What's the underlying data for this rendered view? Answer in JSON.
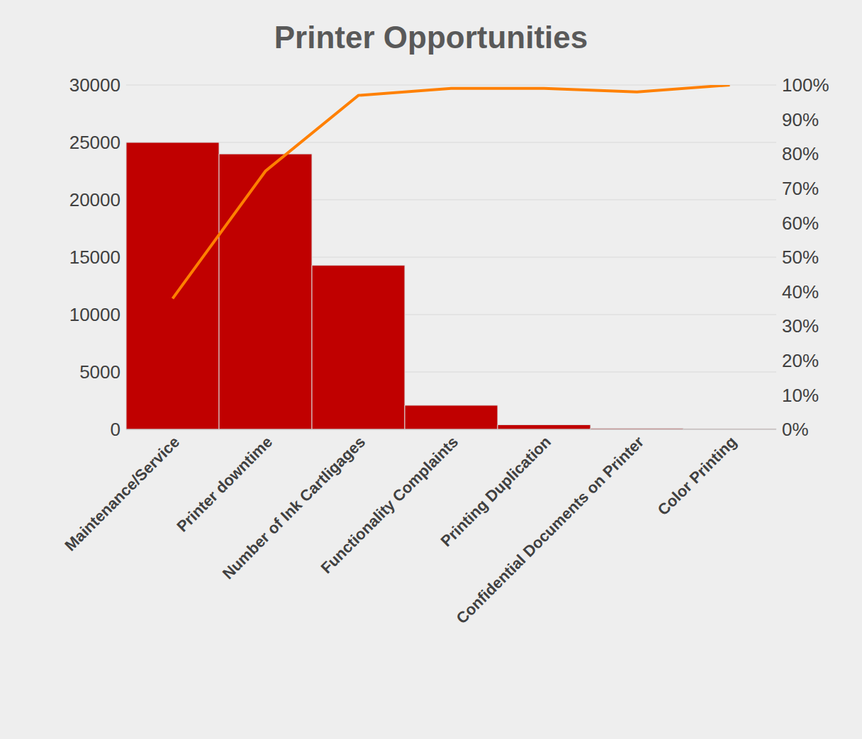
{
  "chart_data": {
    "type": "pareto",
    "title": "Printer Opportunities",
    "categories": [
      "Maintenance/Service",
      "Printer downtime",
      "Number of Ink Cartligages",
      "Functionality Complaints",
      "Printing Duplication",
      "Confidential Documents on Printer",
      "Color Printing"
    ],
    "series": [
      {
        "type": "bar",
        "color": "#c00000",
        "values": [
          25000,
          24000,
          14300,
          2100,
          400,
          100,
          50
        ]
      },
      {
        "type": "line",
        "color": "#ff8000",
        "axis": "y2",
        "values": [
          38,
          75,
          97,
          99,
          99,
          98,
          100
        ]
      }
    ],
    "ylim": [
      0,
      30000
    ],
    "yticks": [
      0,
      5000,
      10000,
      15000,
      20000,
      25000,
      30000
    ],
    "y2lim": [
      0,
      100
    ],
    "y2ticks": [
      {
        "value": 0,
        "label": "0%"
      },
      {
        "value": 10,
        "label": "10%"
      },
      {
        "value": 20,
        "label": "20%"
      },
      {
        "value": 30,
        "label": "30%"
      },
      {
        "value": 40,
        "label": "40%"
      },
      {
        "value": 50,
        "label": "50%"
      },
      {
        "value": 60,
        "label": "60%"
      },
      {
        "value": 70,
        "label": "70%"
      },
      {
        "value": 80,
        "label": "80%"
      },
      {
        "value": 90,
        "label": "90%"
      },
      {
        "value": 100,
        "label": "100%"
      }
    ],
    "grid": true
  }
}
